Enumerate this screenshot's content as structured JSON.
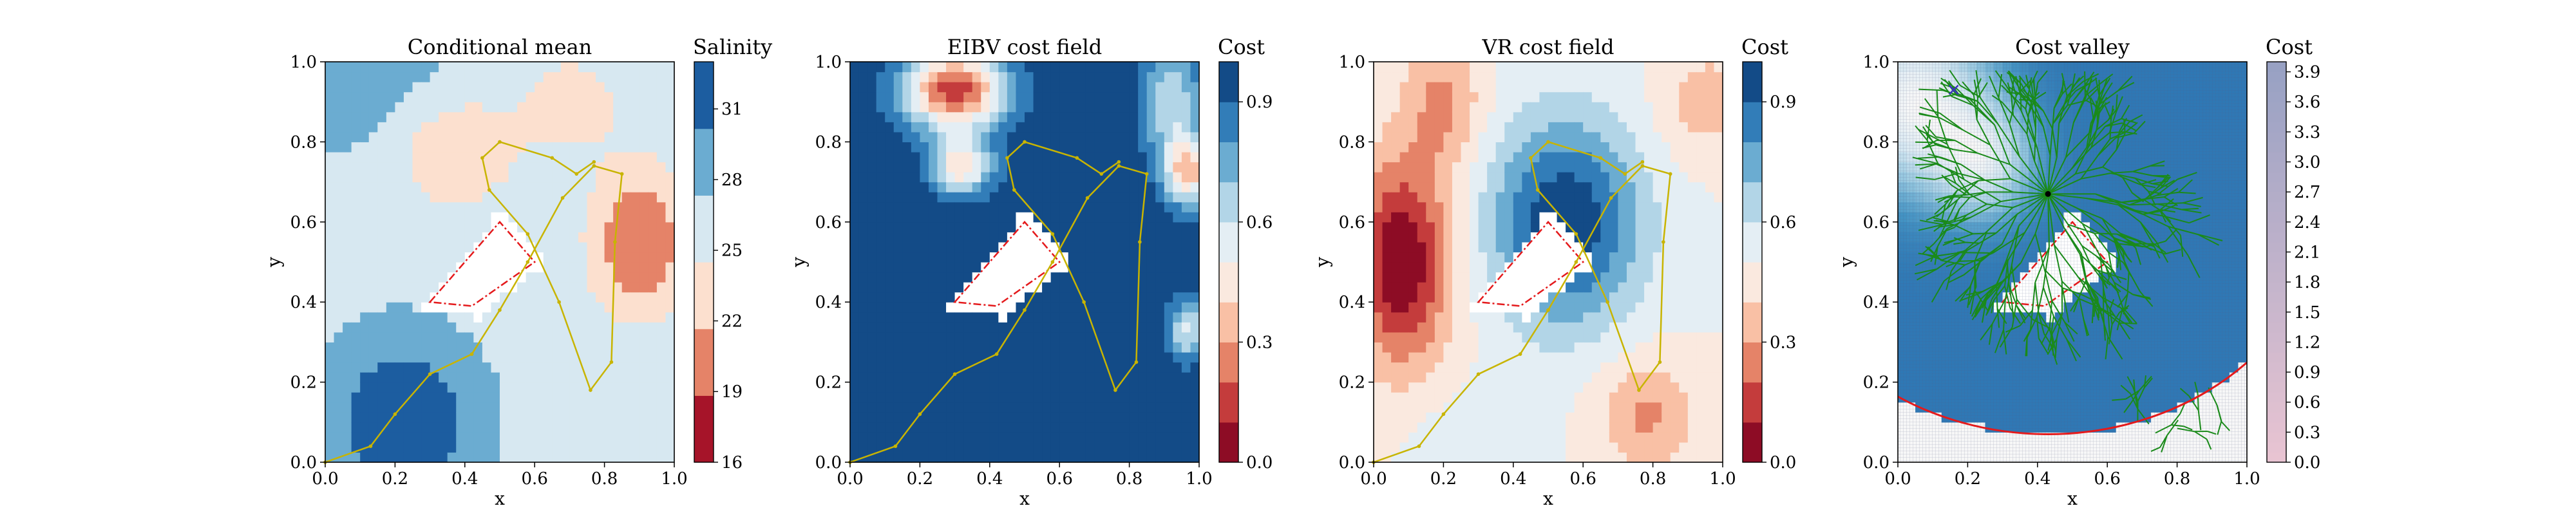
{
  "chart_data": [
    {
      "type": "heatmap",
      "title": "Conditional mean",
      "xlabel": "x",
      "ylabel": "y",
      "xlim": [
        0,
        1
      ],
      "ylim": [
        0,
        1
      ],
      "xticks": [
        "0.0",
        "0.2",
        "0.4",
        "0.6",
        "0.8",
        "1.0"
      ],
      "yticks": [
        "0.0",
        "0.2",
        "0.4",
        "0.6",
        "0.8",
        "1.0"
      ],
      "colorbar": {
        "label": "Salinity",
        "range": [
          16,
          33
        ],
        "ticks": [
          "16",
          "19",
          "22",
          "25",
          "28",
          "31"
        ],
        "tick_values": [
          16,
          19,
          22,
          25,
          28,
          31
        ],
        "colormap": "RdBu"
      },
      "path": [
        [
          0.0,
          0.0
        ],
        [
          0.13,
          0.04
        ],
        [
          0.2,
          0.12
        ],
        [
          0.3,
          0.22
        ],
        [
          0.42,
          0.27
        ],
        [
          0.5,
          0.38
        ],
        [
          0.58,
          0.5
        ],
        [
          0.68,
          0.66
        ],
        [
          0.77,
          0.74
        ],
        [
          0.85,
          0.72
        ],
        [
          0.83,
          0.55
        ],
        [
          0.82,
          0.25
        ],
        [
          0.76,
          0.18
        ],
        [
          0.67,
          0.4
        ],
        [
          0.58,
          0.57
        ],
        [
          0.47,
          0.68
        ],
        [
          0.45,
          0.76
        ],
        [
          0.5,
          0.8
        ],
        [
          0.65,
          0.76
        ],
        [
          0.72,
          0.72
        ],
        [
          0.77,
          0.75
        ]
      ]
    },
    {
      "type": "heatmap",
      "title": "EIBV cost field",
      "xlabel": "x",
      "ylabel": "y",
      "xlim": [
        0,
        1
      ],
      "ylim": [
        0,
        1
      ],
      "xticks": [
        "0.0",
        "0.2",
        "0.4",
        "0.6",
        "0.8",
        "1.0"
      ],
      "yticks": [
        "0.0",
        "0.2",
        "0.4",
        "0.6",
        "0.8",
        "1.0"
      ],
      "colorbar": {
        "label": "Cost",
        "range": [
          0,
          1
        ],
        "ticks": [
          "0.0",
          "0.3",
          "0.6",
          "0.9"
        ],
        "tick_values": [
          0.0,
          0.3,
          0.6,
          0.9
        ],
        "colormap": "RdBu"
      },
      "path": [
        [
          0.0,
          0.0
        ],
        [
          0.13,
          0.04
        ],
        [
          0.2,
          0.12
        ],
        [
          0.3,
          0.22
        ],
        [
          0.42,
          0.27
        ],
        [
          0.5,
          0.38
        ],
        [
          0.58,
          0.5
        ],
        [
          0.68,
          0.66
        ],
        [
          0.77,
          0.74
        ],
        [
          0.85,
          0.72
        ],
        [
          0.83,
          0.55
        ],
        [
          0.82,
          0.25
        ],
        [
          0.76,
          0.18
        ],
        [
          0.67,
          0.4
        ],
        [
          0.58,
          0.57
        ],
        [
          0.47,
          0.68
        ],
        [
          0.45,
          0.76
        ],
        [
          0.5,
          0.8
        ],
        [
          0.65,
          0.76
        ],
        [
          0.72,
          0.72
        ],
        [
          0.77,
          0.75
        ]
      ]
    },
    {
      "type": "heatmap",
      "title": "VR cost field",
      "xlabel": "x",
      "ylabel": "y",
      "xlim": [
        0,
        1
      ],
      "ylim": [
        0,
        1
      ],
      "xticks": [
        "0.0",
        "0.2",
        "0.4",
        "0.6",
        "0.8",
        "1.0"
      ],
      "yticks": [
        "0.0",
        "0.2",
        "0.4",
        "0.6",
        "0.8",
        "1.0"
      ],
      "colorbar": {
        "label": "Cost",
        "range": [
          0,
          1
        ],
        "ticks": [
          "0.0",
          "0.3",
          "0.6",
          "0.9"
        ],
        "tick_values": [
          0.0,
          0.3,
          0.6,
          0.9
        ],
        "colormap": "RdBu"
      },
      "path": [
        [
          0.0,
          0.0
        ],
        [
          0.13,
          0.04
        ],
        [
          0.2,
          0.12
        ],
        [
          0.3,
          0.22
        ],
        [
          0.42,
          0.27
        ],
        [
          0.5,
          0.38
        ],
        [
          0.58,
          0.5
        ],
        [
          0.68,
          0.66
        ],
        [
          0.77,
          0.74
        ],
        [
          0.85,
          0.72
        ],
        [
          0.83,
          0.55
        ],
        [
          0.82,
          0.25
        ],
        [
          0.76,
          0.18
        ],
        [
          0.67,
          0.4
        ],
        [
          0.58,
          0.57
        ],
        [
          0.47,
          0.68
        ],
        [
          0.45,
          0.76
        ],
        [
          0.5,
          0.8
        ],
        [
          0.65,
          0.76
        ],
        [
          0.72,
          0.72
        ],
        [
          0.77,
          0.75
        ]
      ]
    },
    {
      "type": "heatmap",
      "title": "Cost valley",
      "xlabel": "x",
      "ylabel": "y",
      "xlim": [
        0,
        1
      ],
      "ylim": [
        0,
        1
      ],
      "xticks": [
        "0.0",
        "0.2",
        "0.4",
        "0.6",
        "0.8",
        "1.0"
      ],
      "yticks": [
        "0.0",
        "0.2",
        "0.4",
        "0.6",
        "0.8",
        "1.0"
      ],
      "colorbar": {
        "label": "Cost",
        "range": [
          0,
          4
        ],
        "ticks": [
          "0.0",
          "0.3",
          "0.6",
          "0.9",
          "1.2",
          "1.5",
          "1.8",
          "2.1",
          "2.4",
          "2.7",
          "3.0",
          "3.3",
          "3.6",
          "3.9"
        ],
        "tick_values": [
          0.0,
          0.3,
          0.6,
          0.9,
          1.2,
          1.5,
          1.8,
          2.1,
          2.4,
          2.7,
          3.0,
          3.3,
          3.6,
          3.9
        ],
        "colormap": "RdBu"
      },
      "tree_root": [
        0.43,
        0.67
      ],
      "current_location": [
        0.16,
        0.93
      ],
      "budget_ellipse": {
        "center": [
          0.43,
          0.67
        ],
        "semi_major": 0.8,
        "semi_minor": 0.6
      }
    }
  ],
  "obstacle": [
    [
      0.3,
      0.4
    ],
    [
      0.5,
      0.6
    ],
    [
      0.6,
      0.5
    ],
    [
      0.42,
      0.39
    ]
  ],
  "colors": {
    "path": "#c8b400",
    "obstacle_outline": "#e41a1c",
    "tree": "#1a8a1a",
    "ellipse": "#e41a1c",
    "current_location": "#3b2fbf"
  }
}
